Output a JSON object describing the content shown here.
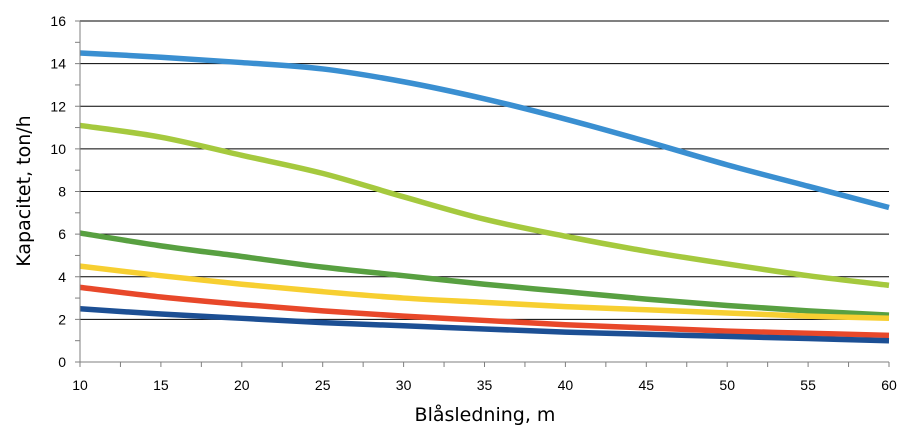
{
  "chart_data": {
    "type": "line",
    "title": "",
    "xlabel": "Blåsledning, m",
    "ylabel": "Kapacitet, ton/h",
    "xlim": [
      10,
      60
    ],
    "ylim": [
      0,
      16
    ],
    "x_ticks": [
      "10",
      "15",
      "20",
      "25",
      "30",
      "35",
      "40",
      "45",
      "50",
      "55",
      "60"
    ],
    "y_ticks": [
      "0",
      "2",
      "4",
      "6",
      "8",
      "10",
      "12",
      "14",
      "16"
    ],
    "grid": "horizontal",
    "legend": "none",
    "x": [
      10,
      15,
      20,
      25,
      30,
      35,
      40,
      45,
      50,
      55,
      60
    ],
    "series": [
      {
        "color": "#3a8fd1",
        "values": [
          14.5,
          14.3,
          14.05,
          13.75,
          13.15,
          12.35,
          11.4,
          10.35,
          9.25,
          8.25,
          7.25
        ]
      },
      {
        "color": "#a5c93e",
        "values": [
          11.1,
          10.55,
          9.7,
          8.85,
          7.75,
          6.7,
          5.9,
          5.2,
          4.6,
          4.05,
          3.6
        ]
      },
      {
        "color": "#58a041",
        "values": [
          6.05,
          5.45,
          4.95,
          4.45,
          4.05,
          3.65,
          3.3,
          2.95,
          2.65,
          2.4,
          2.2
        ]
      },
      {
        "color": "#f7cf31",
        "values": [
          4.5,
          4.05,
          3.65,
          3.3,
          3.0,
          2.8,
          2.6,
          2.45,
          2.3,
          2.15,
          2.05
        ]
      },
      {
        "color": "#e8482a",
        "values": [
          3.5,
          3.05,
          2.7,
          2.4,
          2.15,
          1.95,
          1.75,
          1.6,
          1.45,
          1.35,
          1.25
        ]
      },
      {
        "color": "#1c4f94",
        "values": [
          2.5,
          2.25,
          2.05,
          1.85,
          1.7,
          1.55,
          1.4,
          1.3,
          1.2,
          1.1,
          1.0
        ]
      }
    ]
  }
}
